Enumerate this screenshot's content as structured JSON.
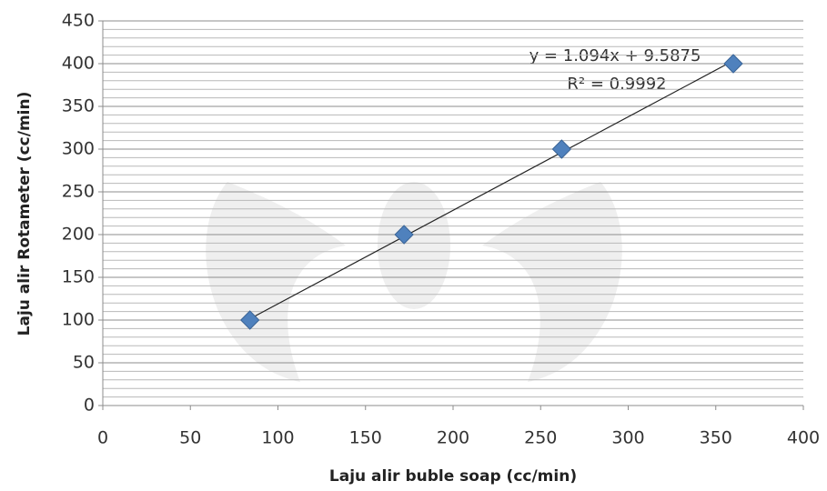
{
  "chart_data": {
    "type": "scatter",
    "x_label": "Laju alir buble soap (cc/min)",
    "y_label": "Laju alir Rotameter (cc/min)",
    "series": [
      {
        "color": "#4f81bd",
        "x": [
          84,
          172,
          262,
          360
        ],
        "values": [
          100,
          200,
          300,
          400
        ]
      }
    ],
    "xlim": [
      0,
      400
    ],
    "xticks": [
      0,
      50,
      100,
      150,
      200,
      250,
      300,
      350,
      400
    ],
    "ylim": [
      0,
      450
    ],
    "yticks": [
      0,
      50,
      100,
      150,
      200,
      250,
      300,
      350,
      400,
      450
    ],
    "yminorticks": [
      10,
      20,
      30,
      40,
      60,
      70,
      80,
      90,
      110,
      120,
      130,
      140,
      160,
      170,
      180,
      190,
      210,
      220,
      230,
      240,
      260,
      270,
      280,
      290,
      310,
      320,
      330,
      340,
      360,
      370,
      380,
      390,
      410,
      420,
      430,
      440
    ],
    "grid": true,
    "trendline": {
      "slope": 1.094,
      "intercept": 9.5875,
      "equation": "y = 1.094x + 9.5875",
      "r2": "R² = 0.9992"
    }
  }
}
